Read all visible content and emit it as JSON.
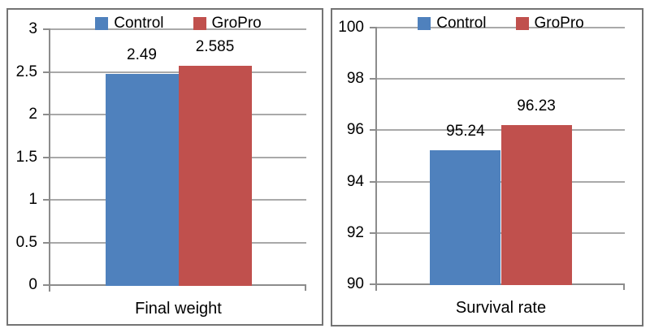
{
  "page": {
    "background": "#ffffff"
  },
  "colors": {
    "control_series": "#4F81BD",
    "gropro_series": "#C0504D",
    "gridline": "#A9A9A9",
    "axis_line": "#8C8C8C",
    "panel_border": "#747474",
    "text": "#000000"
  },
  "chart_data": [
    {
      "type": "bar",
      "title": "",
      "xlabel": "Final weight",
      "ylabel": "",
      "categories": [
        "Final weight"
      ],
      "series": [
        {
          "name": "Control",
          "values": [
            2.49
          ],
          "labels": [
            "2.49"
          ],
          "color": "#4F81BD"
        },
        {
          "name": "GroPro",
          "values": [
            2.585
          ],
          "labels": [
            "2.585"
          ],
          "color": "#C0504D"
        }
      ],
      "ylim": [
        0,
        3
      ],
      "ytick_step": 0.5,
      "yticks": [
        "0",
        "0.5",
        "1",
        "1.5",
        "2",
        "2.5",
        "3"
      ],
      "grid": true,
      "legend_position": "top",
      "data_labels": true
    },
    {
      "type": "bar",
      "title": "",
      "xlabel": "Survival rate",
      "ylabel": "",
      "categories": [
        "Survival rate"
      ],
      "series": [
        {
          "name": "Control",
          "values": [
            95.24
          ],
          "labels": [
            "95.24"
          ],
          "color": "#4F81BD"
        },
        {
          "name": "GroPro",
          "values": [
            96.23
          ],
          "labels": [
            "96.23"
          ],
          "color": "#C0504D"
        }
      ],
      "ylim": [
        90,
        100
      ],
      "ytick_step": 2,
      "yticks": [
        "90",
        "92",
        "94",
        "96",
        "98",
        "100"
      ],
      "grid": true,
      "legend_position": "top",
      "data_labels": true
    }
  ]
}
